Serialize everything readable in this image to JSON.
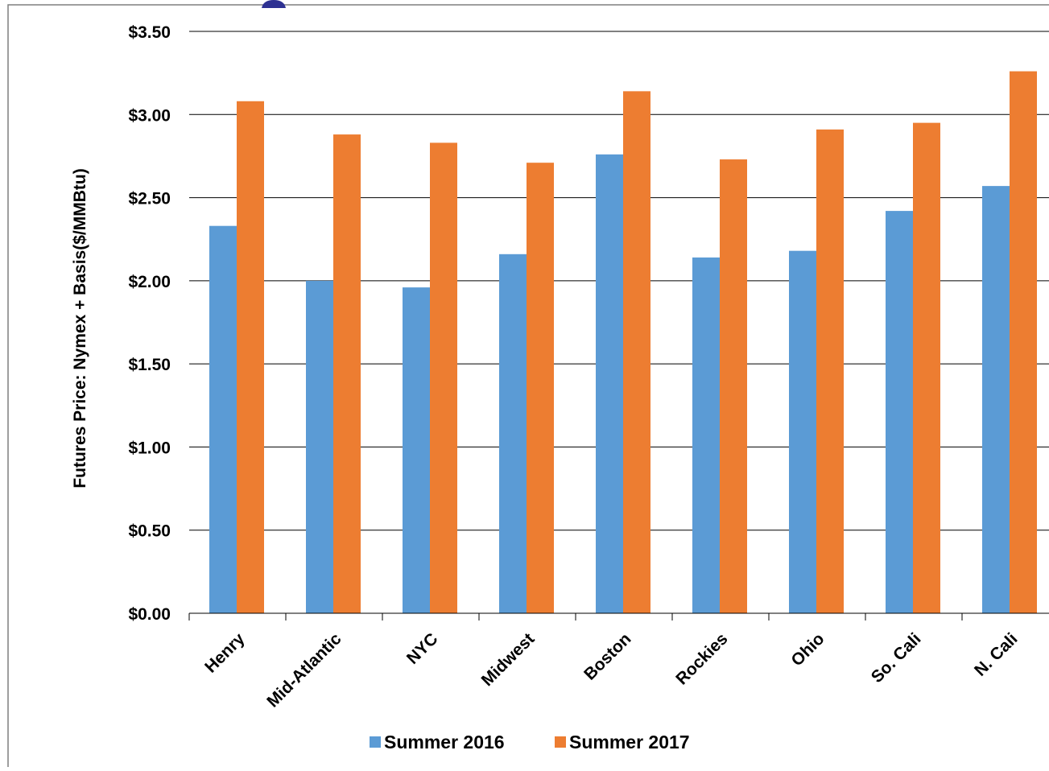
{
  "chart_data": {
    "type": "bar",
    "title": "",
    "xlabel": "",
    "ylabel": "Futures Price: Nymex + Basis($/MMBtu)",
    "ylim": [
      0,
      3.5
    ],
    "y_ticks": [
      "$0.00",
      "$0.50",
      "$1.00",
      "$1.50",
      "$2.00",
      "$2.50",
      "$3.00",
      "$3.50"
    ],
    "y_tick_values": [
      0,
      0.5,
      1.0,
      1.5,
      2.0,
      2.5,
      3.0,
      3.5
    ],
    "grid": true,
    "legend_position": "bottom",
    "categories": [
      "Henry",
      "Mid-Atlantic",
      "NYC",
      "Midwest",
      "Boston",
      "Rockies",
      "Ohio",
      "So. Cali",
      "N. Cali"
    ],
    "series": [
      {
        "name": "Summer 2016",
        "color": "#5B9BD5",
        "values": [
          2.33,
          2.0,
          1.96,
          2.16,
          2.76,
          2.14,
          2.18,
          2.42,
          2.57
        ]
      },
      {
        "name": "Summer 2017",
        "color": "#ED7D31",
        "values": [
          3.08,
          2.88,
          2.83,
          2.71,
          3.14,
          2.73,
          2.91,
          2.95,
          3.26
        ]
      }
    ]
  }
}
